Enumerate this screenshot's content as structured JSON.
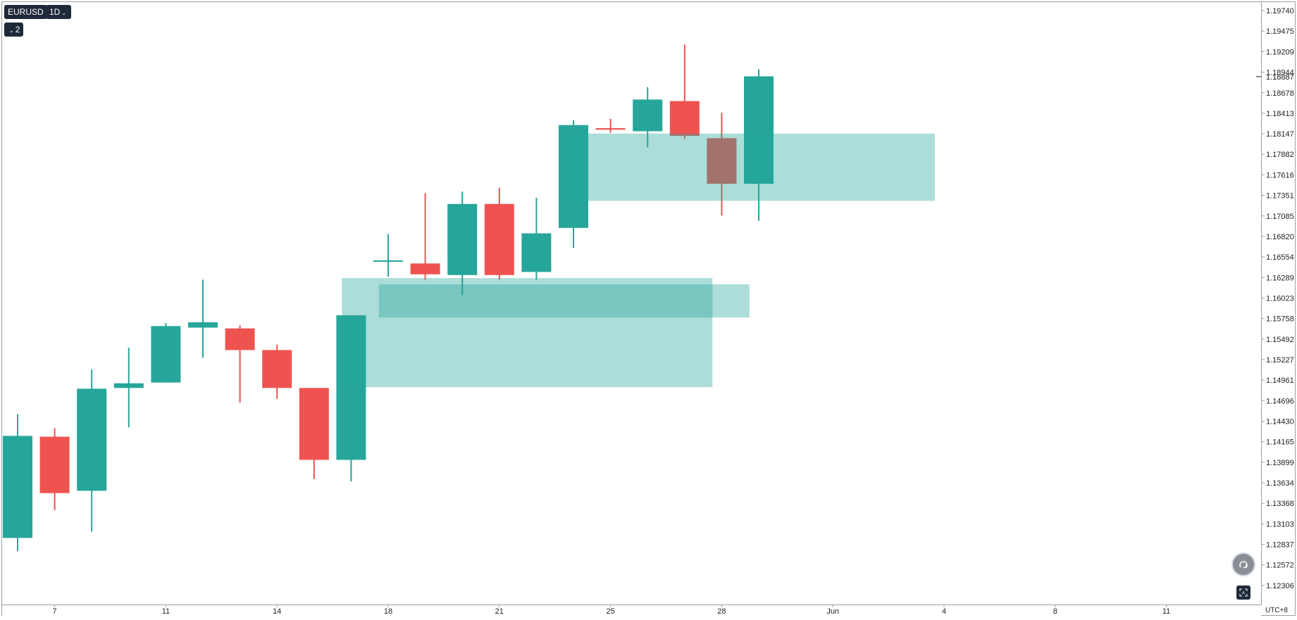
{
  "toolbar": {
    "symbol": "EURUSD",
    "interval": "1D",
    "indicator_count": "2"
  },
  "controls": {
    "timezone": "UTC+8",
    "reset_icon": "rotate-reset-icon",
    "auto_scale_icon": "auto-scale-icon"
  },
  "colors": {
    "up": "#26a69a",
    "down": "#ef5350",
    "zone": "#26a69a",
    "zone_overlap": "#9e6b5b"
  },
  "chart_data": {
    "type": "candlestick",
    "symbol": "EURUSD",
    "interval": "1D",
    "ylim": [
      1.1205,
      1.1985
    ],
    "price_ticks": [
      "1.19740",
      "1.19475",
      "1.19209",
      "1.18944",
      "1.18678",
      "1.18413",
      "1.18147",
      "1.17882",
      "1.17616",
      "1.17351",
      "1.17085",
      "1.16820",
      "1.16554",
      "1.16289",
      "1.16023",
      "1.15758",
      "1.15492",
      "1.15227",
      "1.14961",
      "1.14696",
      "1.14430",
      "1.14165",
      "1.13899",
      "1.13634",
      "1.13368",
      "1.13103",
      "1.12837",
      "1.12572",
      "1.12306"
    ],
    "last_price": "1.18887",
    "x_ticks": [
      {
        "label": "7",
        "index": 1
      },
      {
        "label": "11",
        "index": 4
      },
      {
        "label": "14",
        "index": 7
      },
      {
        "label": "18",
        "index": 10
      },
      {
        "label": "21",
        "index": 13
      },
      {
        "label": "25",
        "index": 16
      },
      {
        "label": "28",
        "index": 19
      },
      {
        "label": "Jun",
        "index": 22
      },
      {
        "label": "4",
        "index": 25
      },
      {
        "label": "8",
        "index": 28
      },
      {
        "label": "11",
        "index": 31
      }
    ],
    "candles": [
      {
        "o": 1.1292,
        "h": 1.1452,
        "l": 1.1275,
        "c": 1.1424
      },
      {
        "o": 1.1423,
        "h": 1.1434,
        "l": 1.1328,
        "c": 1.135
      },
      {
        "o": 1.1353,
        "h": 1.151,
        "l": 1.13,
        "c": 1.1485
      },
      {
        "o": 1.1486,
        "h": 1.1538,
        "l": 1.1435,
        "c": 1.1492
      },
      {
        "o": 1.1493,
        "h": 1.157,
        "l": 1.1493,
        "c": 1.1566
      },
      {
        "o": 1.1564,
        "h": 1.1626,
        "l": 1.1525,
        "c": 1.1571
      },
      {
        "o": 1.1563,
        "h": 1.1567,
        "l": 1.1467,
        "c": 1.1535
      },
      {
        "o": 1.1535,
        "h": 1.1542,
        "l": 1.1472,
        "c": 1.1486
      },
      {
        "o": 1.1486,
        "h": 1.1485,
        "l": 1.1368,
        "c": 1.1393
      },
      {
        "o": 1.1393,
        "h": 1.158,
        "l": 1.1365,
        "c": 1.158
      },
      {
        "o": 1.1651,
        "h": 1.1685,
        "l": 1.163,
        "c": 1.1651
      },
      {
        "o": 1.1647,
        "h": 1.1738,
        "l": 1.1626,
        "c": 1.1633
      },
      {
        "o": 1.1632,
        "h": 1.174,
        "l": 1.1606,
        "c": 1.1724
      },
      {
        "o": 1.1724,
        "h": 1.1745,
        "l": 1.1626,
        "c": 1.1632
      },
      {
        "o": 1.1636,
        "h": 1.1732,
        "l": 1.1626,
        "c": 1.1686
      },
      {
        "o": 1.1693,
        "h": 1.1832,
        "l": 1.1667,
        "c": 1.1826
      },
      {
        "o": 1.1822,
        "h": 1.1834,
        "l": 1.1816,
        "c": 1.182
      },
      {
        "o": 1.1818,
        "h": 1.1875,
        "l": 1.1797,
        "c": 1.1859
      },
      {
        "o": 1.1857,
        "h": 1.193,
        "l": 1.1808,
        "c": 1.1812
      },
      {
        "o": 1.1809,
        "h": 1.1842,
        "l": 1.1709,
        "c": 1.175
      },
      {
        "o": 1.175,
        "h": 1.1898,
        "l": 1.1702,
        "c": 1.1889
      }
    ],
    "zones": [
      {
        "start": 8.75,
        "end": 18.75,
        "top": 1.1628,
        "bottom": 1.1487
      },
      {
        "start": 9.75,
        "end": 19.75,
        "top": 1.162,
        "bottom": 1.1577
      },
      {
        "start": 14.75,
        "end": 24.75,
        "top": 1.1815,
        "bottom": 1.1728
      }
    ]
  }
}
